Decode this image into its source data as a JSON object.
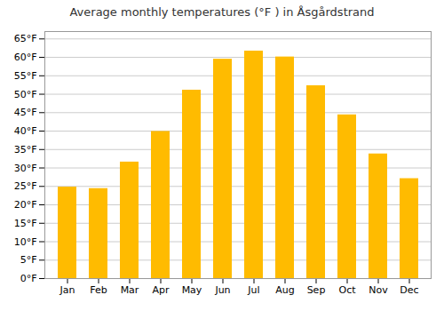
{
  "chart_data": {
    "type": "bar",
    "title": "Average monthly temperatures (°F ) in Åsgårdstrand",
    "categories": [
      "Jan",
      "Feb",
      "Mar",
      "Apr",
      "May",
      "Jun",
      "Jul",
      "Aug",
      "Sep",
      "Oct",
      "Nov",
      "Dec"
    ],
    "values": [
      24.8,
      24.4,
      31.6,
      39.9,
      51.1,
      59.5,
      61.7,
      60.1,
      52.3,
      44.4,
      33.8,
      27.1
    ],
    "color": "#FFBB00",
    "ylim": [
      0,
      67
    ],
    "yticks": [
      {
        "value": 0,
        "label": "0°F"
      },
      {
        "value": 5,
        "label": "5°F"
      },
      {
        "value": 10,
        "label": "10°F"
      },
      {
        "value": 15,
        "label": "15°F"
      },
      {
        "value": 20,
        "label": "20°F"
      },
      {
        "value": 25,
        "label": "25°F"
      },
      {
        "value": 30,
        "label": "30°F"
      },
      {
        "value": 35,
        "label": "35°F"
      },
      {
        "value": 40,
        "label": "40°F"
      },
      {
        "value": 45,
        "label": "45°F"
      },
      {
        "value": 50,
        "label": "50°F"
      },
      {
        "value": 55,
        "label": "55°F"
      },
      {
        "value": 60,
        "label": "60°F"
      },
      {
        "value": 65,
        "label": "65°F"
      }
    ],
    "grid": true
  }
}
